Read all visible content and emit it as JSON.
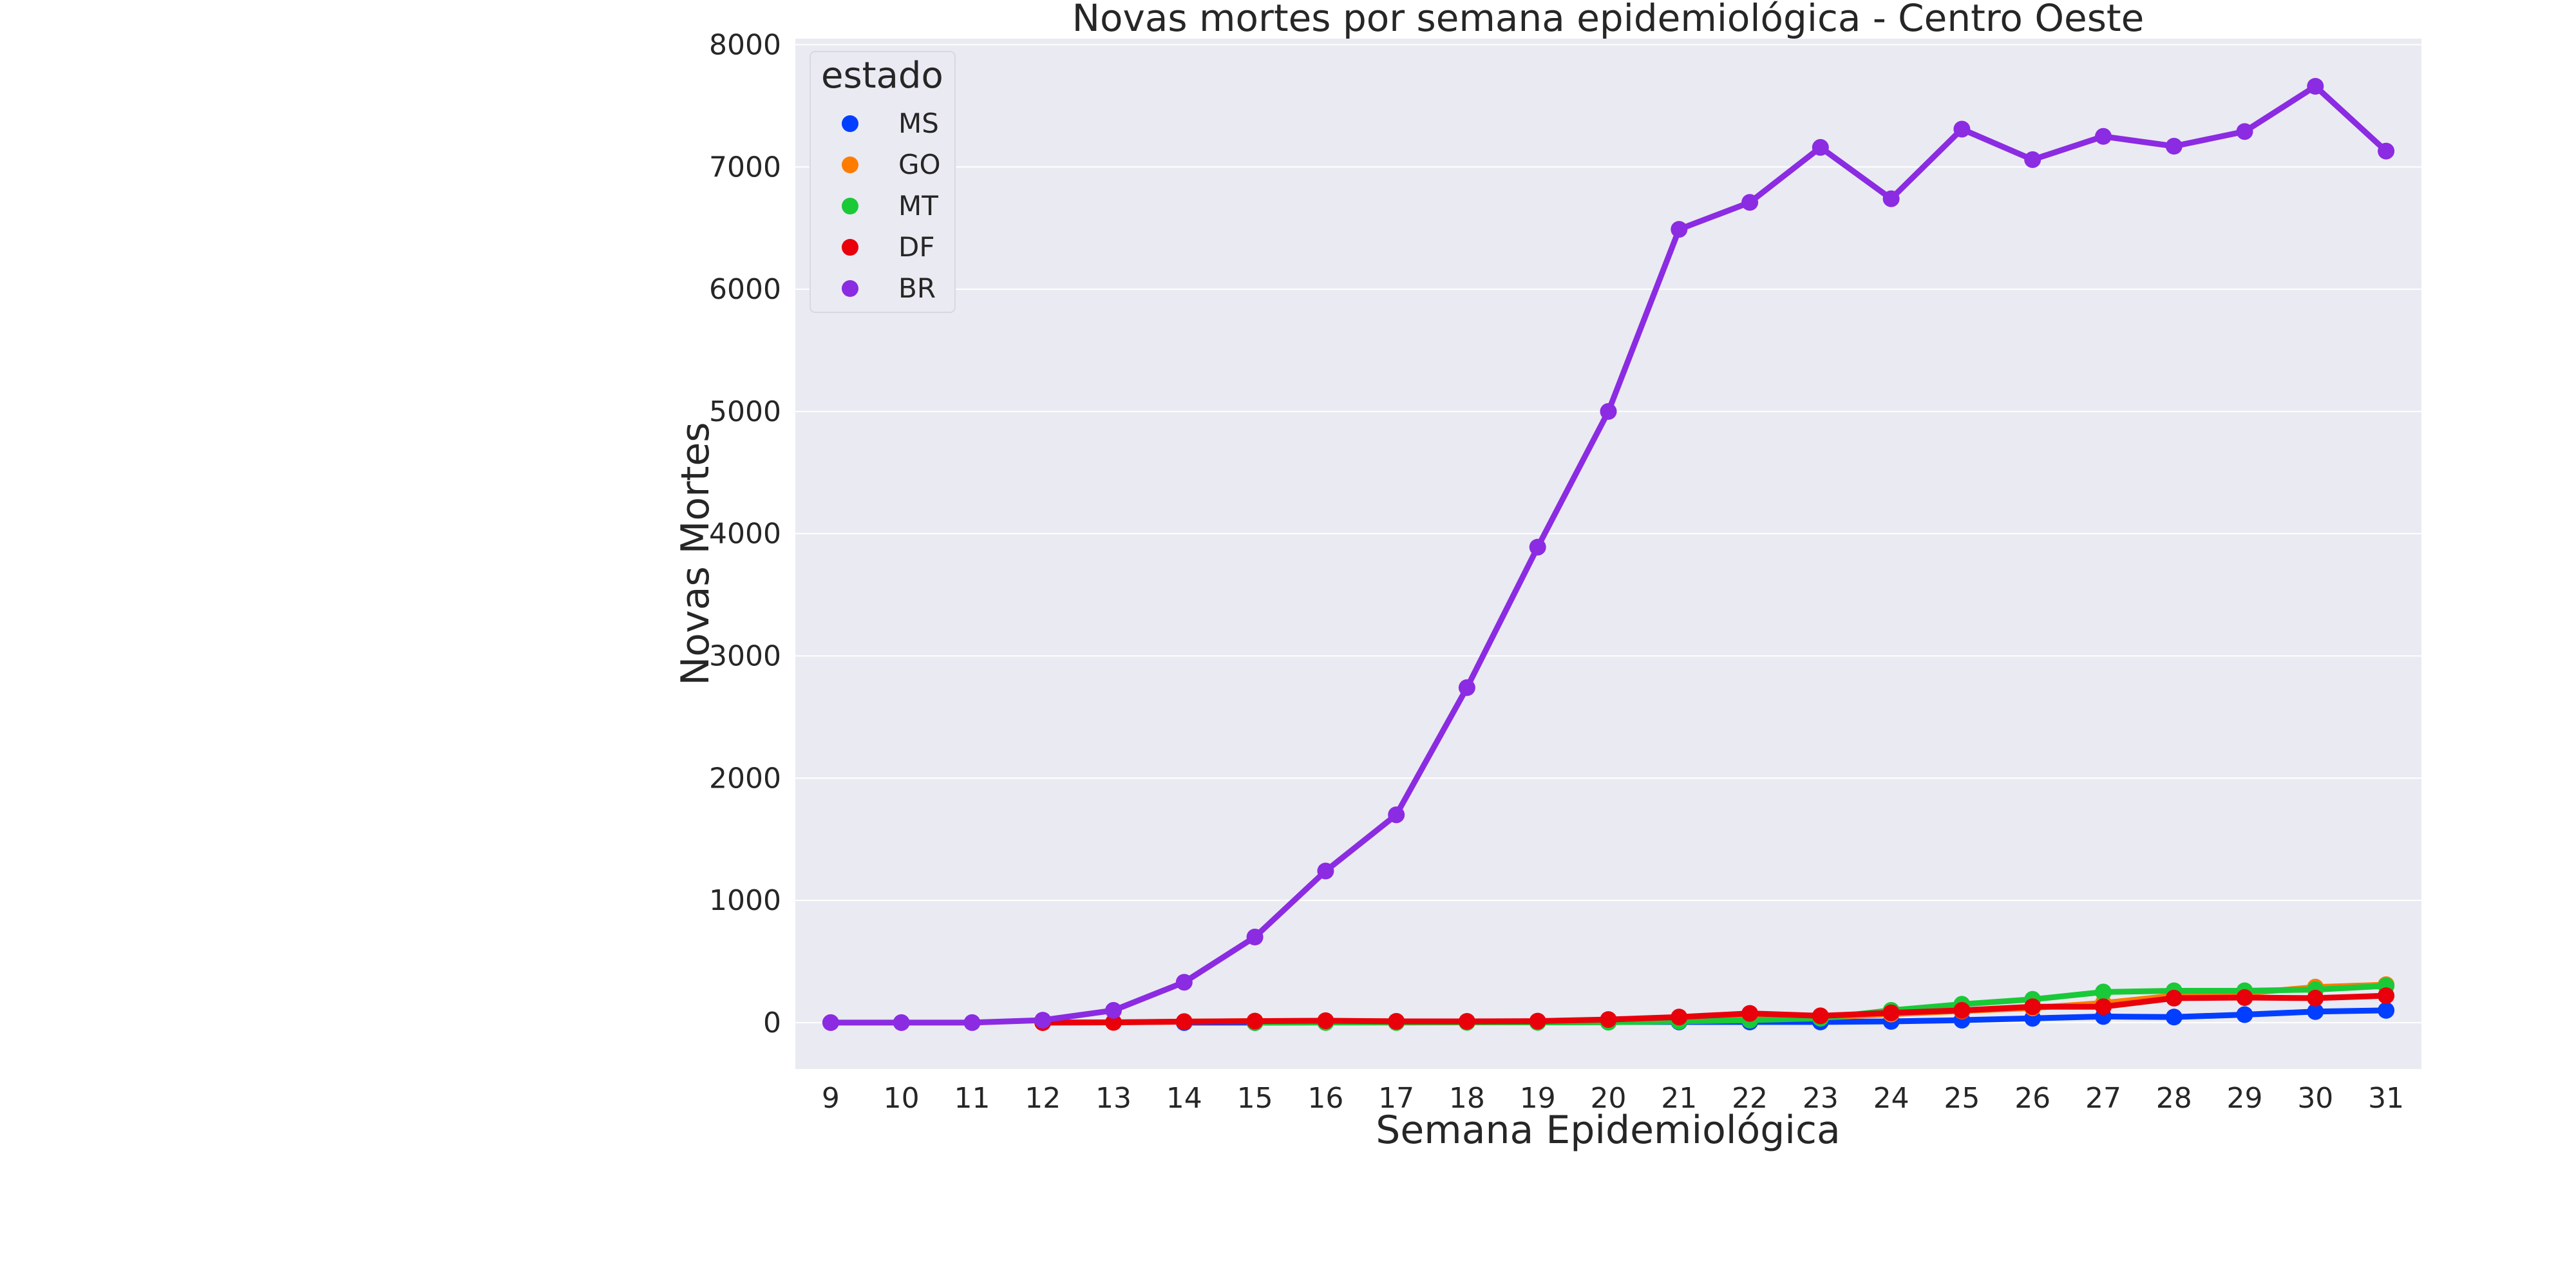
{
  "chart_data": {
    "type": "line",
    "title": "Novas mortes por semana epidemiológica - Centro Oeste",
    "xlabel": "Semana Epidemiológica",
    "ylabel": "Novas Mortes",
    "x": [
      9,
      10,
      11,
      12,
      13,
      14,
      15,
      16,
      17,
      18,
      19,
      20,
      21,
      22,
      23,
      24,
      25,
      26,
      27,
      28,
      29,
      30,
      31
    ],
    "ylim": [
      -380,
      8050
    ],
    "yticks": [
      0,
      1000,
      2000,
      3000,
      4000,
      5000,
      6000,
      7000,
      8000
    ],
    "grid": true,
    "legend": {
      "title": "estado",
      "placement": "top-left"
    },
    "series": [
      {
        "name": "MS",
        "color": "#023eff",
        "values": [
          null,
          null,
          null,
          null,
          null,
          0,
          0,
          2,
          2,
          3,
          3,
          5,
          5,
          5,
          5,
          10,
          20,
          35,
          50,
          45,
          65,
          90,
          100
        ]
      },
      {
        "name": "GO",
        "color": "#ff7c00",
        "values": [
          null,
          null,
          null,
          0,
          2,
          8,
          12,
          15,
          10,
          8,
          10,
          15,
          25,
          40,
          40,
          70,
          95,
          120,
          160,
          220,
          240,
          290,
          310
        ]
      },
      {
        "name": "MT",
        "color": "#1ac938",
        "values": [
          null,
          null,
          null,
          null,
          null,
          null,
          0,
          1,
          1,
          2,
          2,
          3,
          10,
          20,
          35,
          100,
          150,
          190,
          250,
          260,
          260,
          270,
          300
        ]
      },
      {
        "name": "DF",
        "color": "#e8000b",
        "values": [
          null,
          null,
          null,
          0,
          2,
          8,
          12,
          15,
          10,
          10,
          12,
          25,
          45,
          75,
          55,
          80,
          100,
          130,
          130,
          200,
          205,
          200,
          220
        ]
      },
      {
        "name": "BR",
        "color": "#8b2be2",
        "values": [
          0,
          0,
          0,
          20,
          100,
          330,
          700,
          1240,
          1700,
          2740,
          3890,
          5000,
          6490,
          6710,
          7160,
          6740,
          7310,
          7060,
          7250,
          7170,
          7290,
          7660,
          7130
        ]
      }
    ]
  }
}
